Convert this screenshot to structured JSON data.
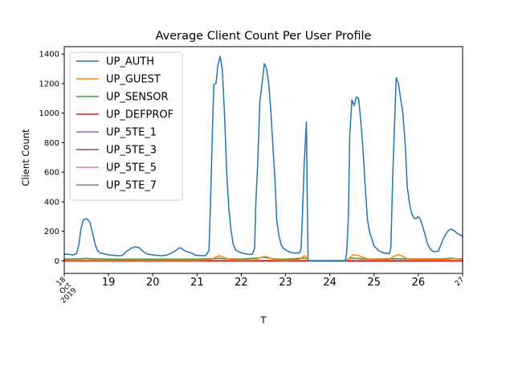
{
  "chart_data": {
    "type": "line",
    "title": "Average Client Count Per User Profile",
    "xlabel": "T",
    "ylabel": "Client Count",
    "ylim": [
      -85,
      1450
    ],
    "yticks": [
      0,
      200,
      400,
      600,
      800,
      1000,
      1200,
      1400
    ],
    "xlim": [
      18,
      27
    ],
    "xticks": [
      {
        "value": 18,
        "lines": [
          "18",
          "Oct",
          "2019"
        ],
        "style": "rotated"
      },
      {
        "value": 19,
        "lines": [
          "19"
        ],
        "style": "major"
      },
      {
        "value": 20,
        "lines": [
          "20"
        ],
        "style": "major"
      },
      {
        "value": 21,
        "lines": [
          "21"
        ],
        "style": "major"
      },
      {
        "value": 22,
        "lines": [
          "22"
        ],
        "style": "major"
      },
      {
        "value": 23,
        "lines": [
          "23"
        ],
        "style": "major"
      },
      {
        "value": 24,
        "lines": [
          "24"
        ],
        "style": "major"
      },
      {
        "value": 25,
        "lines": [
          "25"
        ],
        "style": "major"
      },
      {
        "value": 26,
        "lines": [
          "26"
        ],
        "style": "major"
      },
      {
        "value": 27,
        "lines": [
          "27"
        ],
        "style": "rotated"
      }
    ],
    "grid": false,
    "legend_position": "upper-left",
    "series": [
      {
        "name": "UP_AUTH",
        "color": "#1f77b4",
        "points": [
          [
            18.0,
            45
          ],
          [
            18.1,
            44
          ],
          [
            18.2,
            40
          ],
          [
            18.28,
            50
          ],
          [
            18.33,
            110
          ],
          [
            18.38,
            220
          ],
          [
            18.43,
            275
          ],
          [
            18.48,
            285
          ],
          [
            18.53,
            280
          ],
          [
            18.58,
            260
          ],
          [
            18.63,
            200
          ],
          [
            18.7,
            110
          ],
          [
            18.75,
            70
          ],
          [
            18.8,
            55
          ],
          [
            18.9,
            48
          ],
          [
            19.0,
            40
          ],
          [
            19.1,
            38
          ],
          [
            19.2,
            35
          ],
          [
            19.3,
            36
          ],
          [
            19.35,
            45
          ],
          [
            19.4,
            65
          ],
          [
            19.45,
            70
          ],
          [
            19.5,
            85
          ],
          [
            19.6,
            95
          ],
          [
            19.7,
            88
          ],
          [
            19.75,
            72
          ],
          [
            19.82,
            55
          ],
          [
            19.9,
            45
          ],
          [
            20.0,
            40
          ],
          [
            20.1,
            37
          ],
          [
            20.2,
            35
          ],
          [
            20.3,
            38
          ],
          [
            20.4,
            50
          ],
          [
            20.5,
            65
          ],
          [
            20.6,
            88
          ],
          [
            20.65,
            85
          ],
          [
            20.7,
            72
          ],
          [
            20.8,
            60
          ],
          [
            20.85,
            55
          ],
          [
            20.9,
            50
          ],
          [
            20.95,
            40
          ],
          [
            21.0,
            38
          ],
          [
            21.1,
            35
          ],
          [
            21.2,
            37
          ],
          [
            21.27,
            70
          ],
          [
            21.3,
            350
          ],
          [
            21.35,
            900
          ],
          [
            21.38,
            1195
          ],
          [
            21.43,
            1200
          ],
          [
            21.47,
            1320
          ],
          [
            21.52,
            1385
          ],
          [
            21.57,
            1300
          ],
          [
            21.62,
            1000
          ],
          [
            21.67,
            600
          ],
          [
            21.72,
            350
          ],
          [
            21.77,
            200
          ],
          [
            21.82,
            110
          ],
          [
            21.87,
            75
          ],
          [
            21.95,
            60
          ],
          [
            22.05,
            50
          ],
          [
            22.15,
            45
          ],
          [
            22.25,
            45
          ],
          [
            22.3,
            85
          ],
          [
            22.33,
            400
          ],
          [
            22.37,
            650
          ],
          [
            22.42,
            1080
          ],
          [
            22.47,
            1200
          ],
          [
            22.52,
            1335
          ],
          [
            22.57,
            1300
          ],
          [
            22.62,
            1200
          ],
          [
            22.67,
            1000
          ],
          [
            22.72,
            750
          ],
          [
            22.77,
            500
          ],
          [
            22.8,
            280
          ],
          [
            22.85,
            170
          ],
          [
            22.9,
            110
          ],
          [
            22.95,
            85
          ],
          [
            23.05,
            65
          ],
          [
            23.15,
            55
          ],
          [
            23.25,
            52
          ],
          [
            23.32,
            55
          ],
          [
            23.35,
            80
          ],
          [
            23.38,
            300
          ],
          [
            23.42,
            650
          ],
          [
            23.47,
            940
          ],
          [
            23.49,
            400
          ],
          [
            23.51,
            0
          ],
          [
            24.35,
            0
          ],
          [
            24.38,
            50
          ],
          [
            24.42,
            300
          ],
          [
            24.45,
            850
          ],
          [
            24.5,
            1090
          ],
          [
            24.55,
            1050
          ],
          [
            24.6,
            1110
          ],
          [
            24.65,
            1100
          ],
          [
            24.7,
            950
          ],
          [
            24.75,
            750
          ],
          [
            24.8,
            500
          ],
          [
            24.85,
            280
          ],
          [
            24.9,
            190
          ],
          [
            24.95,
            150
          ],
          [
            25.0,
            100
          ],
          [
            25.1,
            70
          ],
          [
            25.2,
            55
          ],
          [
            25.3,
            50
          ],
          [
            25.35,
            50
          ],
          [
            25.38,
            90
          ],
          [
            25.42,
            550
          ],
          [
            25.46,
            900
          ],
          [
            25.5,
            1240
          ],
          [
            25.55,
            1200
          ],
          [
            25.6,
            1100
          ],
          [
            25.65,
            1000
          ],
          [
            25.7,
            800
          ],
          [
            25.75,
            500
          ],
          [
            25.8,
            390
          ],
          [
            25.85,
            320
          ],
          [
            25.9,
            290
          ],
          [
            25.95,
            285
          ],
          [
            26.0,
            300
          ],
          [
            26.05,
            280
          ],
          [
            26.1,
            230
          ],
          [
            26.15,
            180
          ],
          [
            26.2,
            120
          ],
          [
            26.25,
            90
          ],
          [
            26.3,
            70
          ],
          [
            26.35,
            62
          ],
          [
            26.45,
            65
          ],
          [
            26.5,
            100
          ],
          [
            26.55,
            140
          ],
          [
            26.6,
            170
          ],
          [
            26.65,
            195
          ],
          [
            26.7,
            210
          ],
          [
            26.75,
            215
          ],
          [
            26.8,
            205
          ],
          [
            26.83,
            200
          ],
          [
            26.88,
            185
          ],
          [
            26.95,
            175
          ],
          [
            27.0,
            165
          ]
        ]
      },
      {
        "name": "UP_GUEST",
        "color": "#ff7f0e",
        "points": [
          [
            18.0,
            5
          ],
          [
            18.5,
            5
          ],
          [
            19.0,
            4
          ],
          [
            19.5,
            5
          ],
          [
            20.0,
            4
          ],
          [
            20.5,
            5
          ],
          [
            21.0,
            4
          ],
          [
            21.3,
            8
          ],
          [
            21.4,
            22
          ],
          [
            21.5,
            35
          ],
          [
            21.55,
            30
          ],
          [
            21.65,
            18
          ],
          [
            21.8,
            8
          ],
          [
            22.0,
            5
          ],
          [
            22.3,
            7
          ],
          [
            22.4,
            18
          ],
          [
            22.5,
            28
          ],
          [
            22.55,
            30
          ],
          [
            22.65,
            18
          ],
          [
            22.8,
            7
          ],
          [
            23.0,
            5
          ],
          [
            23.3,
            8
          ],
          [
            23.4,
            28
          ],
          [
            23.45,
            35
          ],
          [
            23.5,
            0
          ],
          [
            24.35,
            0
          ],
          [
            24.42,
            10
          ],
          [
            24.5,
            35
          ],
          [
            24.55,
            42
          ],
          [
            24.65,
            35
          ],
          [
            24.75,
            22
          ],
          [
            24.85,
            15
          ],
          [
            25.0,
            8
          ],
          [
            25.3,
            8
          ],
          [
            25.4,
            22
          ],
          [
            25.5,
            38
          ],
          [
            25.55,
            42
          ],
          [
            25.65,
            30
          ],
          [
            25.75,
            15
          ],
          [
            25.85,
            12
          ],
          [
            26.0,
            10
          ],
          [
            26.3,
            8
          ],
          [
            26.6,
            10
          ],
          [
            26.8,
            15
          ],
          [
            27.0,
            12
          ]
        ]
      },
      {
        "name": "UP_SENSOR",
        "color": "#2ca02c",
        "points": [
          [
            18.0,
            12
          ],
          [
            18.4,
            14
          ],
          [
            18.5,
            17
          ],
          [
            18.6,
            14
          ],
          [
            19.0,
            12
          ],
          [
            20.0,
            12
          ],
          [
            21.0,
            12
          ],
          [
            21.4,
            15
          ],
          [
            21.5,
            18
          ],
          [
            21.6,
            14
          ],
          [
            22.0,
            12
          ],
          [
            22.4,
            20
          ],
          [
            22.5,
            25
          ],
          [
            22.6,
            20
          ],
          [
            22.8,
            12
          ],
          [
            23.0,
            12
          ],
          [
            23.4,
            18
          ],
          [
            23.47,
            20
          ],
          [
            23.5,
            0
          ],
          [
            24.35,
            0
          ],
          [
            24.45,
            18
          ],
          [
            24.55,
            18
          ],
          [
            24.7,
            14
          ],
          [
            25.0,
            12
          ],
          [
            25.5,
            15
          ],
          [
            26.0,
            13
          ],
          [
            26.5,
            13
          ],
          [
            26.75,
            18
          ],
          [
            26.85,
            15
          ],
          [
            27.0,
            14
          ]
        ]
      },
      {
        "name": "UP_DEFPROF",
        "color": "#d62728",
        "points": [
          [
            18.0,
            0
          ],
          [
            27.0,
            0
          ]
        ]
      },
      {
        "name": "UP_5TE_1",
        "color": "#9467bd",
        "points": [
          [
            18.0,
            1
          ],
          [
            27.0,
            1
          ]
        ]
      },
      {
        "name": "UP_5TE_3",
        "color": "#8c564b",
        "points": [
          [
            18.0,
            2
          ],
          [
            27.0,
            2
          ]
        ]
      },
      {
        "name": "UP_5TE_5",
        "color": "#e377c2",
        "points": [
          [
            18.0,
            0
          ],
          [
            27.0,
            0
          ]
        ]
      },
      {
        "name": "UP_5TE_7",
        "color": "#7f7f7f",
        "points": [
          [
            18.0,
            -2
          ],
          [
            23.5,
            -2
          ],
          [
            24.35,
            -3
          ],
          [
            27.0,
            -2
          ]
        ]
      }
    ]
  }
}
